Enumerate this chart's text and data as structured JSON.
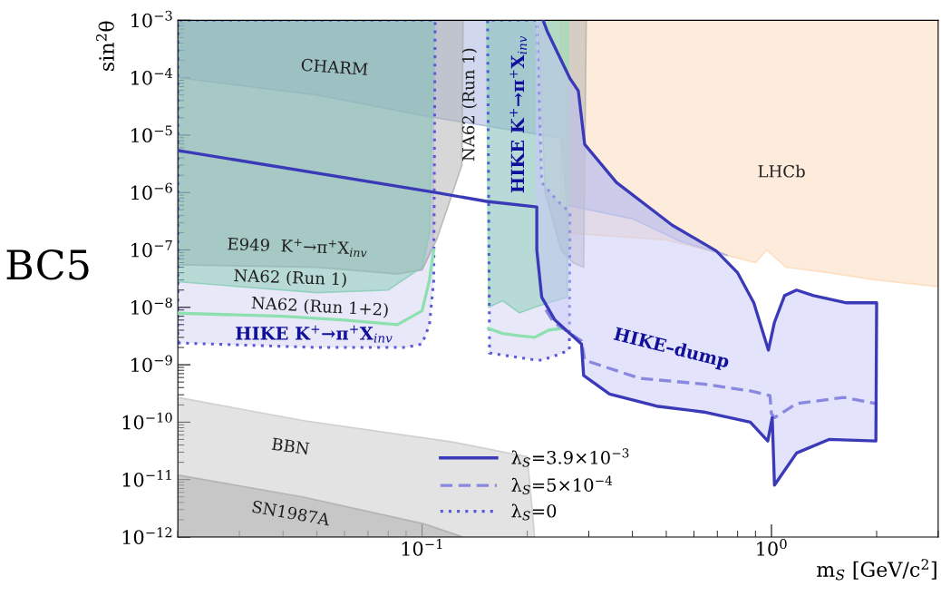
{
  "chart_data": {
    "type": "area",
    "xlabel": "m$_{S}$ [GeV/c$^{2}$]",
    "ylabel": "sin$^{2}$θ",
    "log": "xy",
    "grid": false,
    "legend": "bottom",
    "xlim": [
      0.02,
      3
    ],
    "ylim": [
      1e-12,
      0.001
    ],
    "xticks": [
      {
        "value": 0.1,
        "label": "10$^{−1}$"
      },
      {
        "value": 1,
        "label": "10$^{0}$"
      }
    ],
    "yticks": [
      {
        "value": 1e-12,
        "label": "10$^{−12}$"
      },
      {
        "value": 1e-11,
        "label": "10$^{−11}$"
      },
      {
        "value": 1e-10,
        "label": "10$^{−10}$"
      },
      {
        "value": 1e-09,
        "label": "10$^{−9}$"
      },
      {
        "value": 1e-08,
        "label": "10$^{−8}$"
      },
      {
        "value": 1e-07,
        "label": "10$^{−7}$"
      },
      {
        "value": 1e-06,
        "label": "10$^{−6}$"
      },
      {
        "value": 1e-05,
        "label": "10$^{−5}$"
      },
      {
        "value": 0.0001,
        "label": "10$^{−4}$"
      },
      {
        "value": 0.001,
        "label": "10$^{−3}$"
      }
    ],
    "series": [
      {
        "color": "#fcd9b8",
        "x": [
          0.25,
          0.5,
          0.75,
          0.9,
          0.97,
          1.1,
          1.46,
          2,
          3,
          3,
          0.25
        ],
        "values": [
          2e-07,
          1.5e-07,
          8e-08,
          6e-08,
          1e-07,
          5e-08,
          4e-08,
          3e-08,
          2.3e-08,
          0.001,
          0.001
        ]
      },
      {
        "color": "#a4b2dc",
        "x": [
          0.02,
          0.05,
          0.1,
          0.2,
          0.25,
          0.26,
          0.4,
          0.55,
          0.75,
          0.695,
          0.52,
          0.36,
          0.292,
          0.28,
          0.265,
          0.228,
          0.222,
          0.02
        ],
        "values": [
          0.0001,
          5e-05,
          2.2e-05,
          1.1e-05,
          9e-06,
          6e-07,
          3.5e-07,
          1.4e-07,
          8e-08,
          9.6e-08,
          2.7e-07,
          1.5e-06,
          6.9e-06,
          5.9e-05,
          9.7e-05,
          0.00065,
          0.001,
          0.001
        ]
      },
      {
        "color": "#b0b0b0",
        "x": [
          0.02,
          0.05,
          0.085,
          0.1,
          0.11,
          0.12,
          0.13,
          0.131,
          0.02
        ],
        "values": [
          5.5e-08,
          5e-08,
          3.8e-08,
          4.5e-08,
          1.5e-07,
          7e-07,
          3e-06,
          0.001,
          0.001
        ]
      },
      {
        "color": "#b0b0b0",
        "x": [
          0.215,
          0.225,
          0.25,
          0.27,
          0.29,
          0.295
        ],
        "values": [
          0.001,
          1e-06,
          1e-07,
          6e-08,
          5e-08,
          0.001
        ]
      },
      {
        "color": "#8fe0b0",
        "x": [
          0.02,
          0.05,
          0.08,
          0.1,
          0.105,
          0.108,
          0.02
        ],
        "values": [
          2.8e-08,
          1.8e-08,
          2e-08,
          5e-08,
          2e-07,
          0.001,
          0.001
        ]
      },
      {
        "color": "#8fe0b0",
        "x": [
          0.153,
          0.155,
          0.17,
          0.19,
          0.21,
          0.23,
          0.26,
          0.262
        ],
        "values": [
          0.001,
          1e-08,
          1.3e-08,
          8e-09,
          1e-08,
          1.2e-08,
          1.5e-08,
          0.001
        ]
      },
      {
        "name": "λ$_{S}$=0",
        "color": "#5a5ad8",
        "line_style": "dotted",
        "x": [
          0.02,
          0.05,
          0.09,
          0.1,
          0.105,
          0.108,
          0.109,
          0.02
        ],
        "values": [
          2.4e-09,
          2e-09,
          2e-09,
          2.3e-09,
          5e-09,
          3e-08,
          0.001,
          0.001
        ]
      },
      {
        "color": "#5a5ad8",
        "line_style": "dotted",
        "x": [
          0.154,
          0.156,
          0.18,
          0.213,
          0.22,
          0.245,
          0.264,
          0.265,
          0.245,
          0.22,
          0.213
        ],
        "values": [
          0.001,
          1.6e-09,
          1.4e-09,
          1.2e-09,
          1.2e-09,
          1.5e-09,
          1.8e-09,
          4.5e-07,
          7e-07,
          1.5e-06,
          0.001
        ]
      },
      {
        "color": "#c8c8f8",
        "x": [
          0.213,
          0.213,
          0.22,
          0.24,
          0.286,
          0.29,
          0.344,
          0.469,
          0.64,
          0.87,
          0.976,
          1.005,
          1.02,
          1.18,
          1.46,
          1.99,
          2.0,
          1.64,
          1.32,
          1.18,
          1.09,
          1.02,
          0.98,
          0.89,
          0.8,
          0.695,
          0.52,
          0.36,
          0.292,
          0.28,
          0.265,
          0.228,
          0.222,
          0.213
        ],
        "values": [
          5.6e-07,
          1e-07,
          1.5e-08,
          6e-09,
          2.3e-09,
          6.5e-10,
          3.1e-10,
          1.9e-10,
          1.5e-10,
          1e-10,
          4.7e-11,
          1.2e-10,
          8e-12,
          2.9e-11,
          5e-11,
          4.7e-11,
          1.2e-08,
          1.2e-08,
          1.6e-08,
          2e-08,
          1.6e-08,
          5.5e-09,
          1.8e-09,
          1.2e-08,
          4e-08,
          9.6e-08,
          2.7e-07,
          1.5e-06,
          6.9e-06,
          5.9e-05,
          9.7e-05,
          0.00065,
          0.001,
          0.001
        ]
      },
      {
        "color": "#c8c8c8",
        "x": [
          0.02,
          0.0455,
          0.123,
          0.2,
          0.21,
          0.02
        ],
        "values": [
          2.7e-10,
          1.07e-10,
          4.5e-11,
          2.5e-11,
          1e-12,
          1e-12
        ]
      },
      {
        "color": "#acacac",
        "x": [
          0.02,
          0.0455,
          0.101,
          0.131,
          0.02
        ],
        "values": [
          1.2e-11,
          5e-12,
          1.7e-12,
          1e-12,
          1e-12
        ]
      },
      {
        "type": "line",
        "color": "#8fe0b0",
        "line_style": "solid",
        "x": [
          0.02,
          0.04,
          0.06,
          0.085,
          0.1,
          0.105,
          0.108
        ],
        "values": [
          7.9e-09,
          7e-09,
          6e-09,
          5e-09,
          8.7e-09,
          3e-08,
          1e-07
        ]
      },
      {
        "type": "line",
        "color": "#8fe0b0",
        "line_style": "solid",
        "x": [
          0.155,
          0.17,
          0.19,
          0.21,
          0.23,
          0.25
        ],
        "values": [
          4.3e-09,
          3.5e-09,
          3.2e-09,
          3e-09,
          4e-09,
          4.3e-09
        ]
      },
      {
        "type": "line",
        "name": "λ$_{S}$=5×10$^{−4}$",
        "color": "#8888e0",
        "line_style": "dashed",
        "x": [
          0.226,
          0.238,
          0.286,
          0.292,
          0.42,
          0.64,
          0.87,
          0.99,
          1.0,
          1.02,
          1.18,
          1.61,
          1.99
        ],
        "values": [
          9e-09,
          5.5e-09,
          2.6e-09,
          1.2e-09,
          5.8e-10,
          4.6e-10,
          3.5e-10,
          2.9e-10,
          1.4e-10,
          1.2e-10,
          2.1e-10,
          2.7e-10,
          2.1e-10
        ]
      },
      {
        "type": "line",
        "name": "λ$_{S}$=3.9×10$^{−3}$",
        "color": "#3a3ab8",
        "line_style": "solid",
        "x": [
          0.02,
          0.109,
          0.153,
          0.213,
          0.213,
          0.22,
          0.24,
          0.286,
          0.29,
          0.344,
          0.469,
          0.64,
          0.87,
          0.976,
          1.005,
          1.02,
          1.18,
          1.46,
          1.99,
          2.0,
          1.64,
          1.32,
          1.18,
          1.09,
          1.02,
          0.98,
          0.89,
          0.8,
          0.695,
          0.52,
          0.36,
          0.292,
          0.28,
          0.265,
          0.228,
          0.222
        ],
        "values": [
          5.4e-06,
          1e-06,
          7e-07,
          5.6e-07,
          1e-07,
          1.5e-08,
          6e-09,
          2.3e-09,
          6.5e-10,
          3.1e-10,
          1.9e-10,
          1.5e-10,
          1e-10,
          4.7e-11,
          1.2e-10,
          8e-12,
          2.9e-11,
          5e-11,
          4.7e-11,
          1.2e-08,
          1.2e-08,
          1.6e-08,
          2e-08,
          1.6e-08,
          5.5e-09,
          1.8e-09,
          1.2e-08,
          4e-08,
          9.6e-08,
          2.7e-07,
          1.5e-06,
          6.9e-06,
          5.9e-05,
          9.7e-05,
          0.00065,
          0.001
        ]
      }
    ],
    "annotations": [
      "BC5",
      "CHARM",
      "NA62 (Run 1)",
      "HIKE K$^{+}$→π$^{+}$X$_{inv}$",
      "LHCb",
      "E949  K$^{+}$→π$^{+}$X$_{inv}$",
      "NA62 (Run 1)",
      "NA62 (Run 1+2)",
      "HIKE K$^{+}$→π$^{+}$X$_{inv}$",
      "HIKE–dump",
      "BBN",
      "SN1987A"
    ]
  }
}
